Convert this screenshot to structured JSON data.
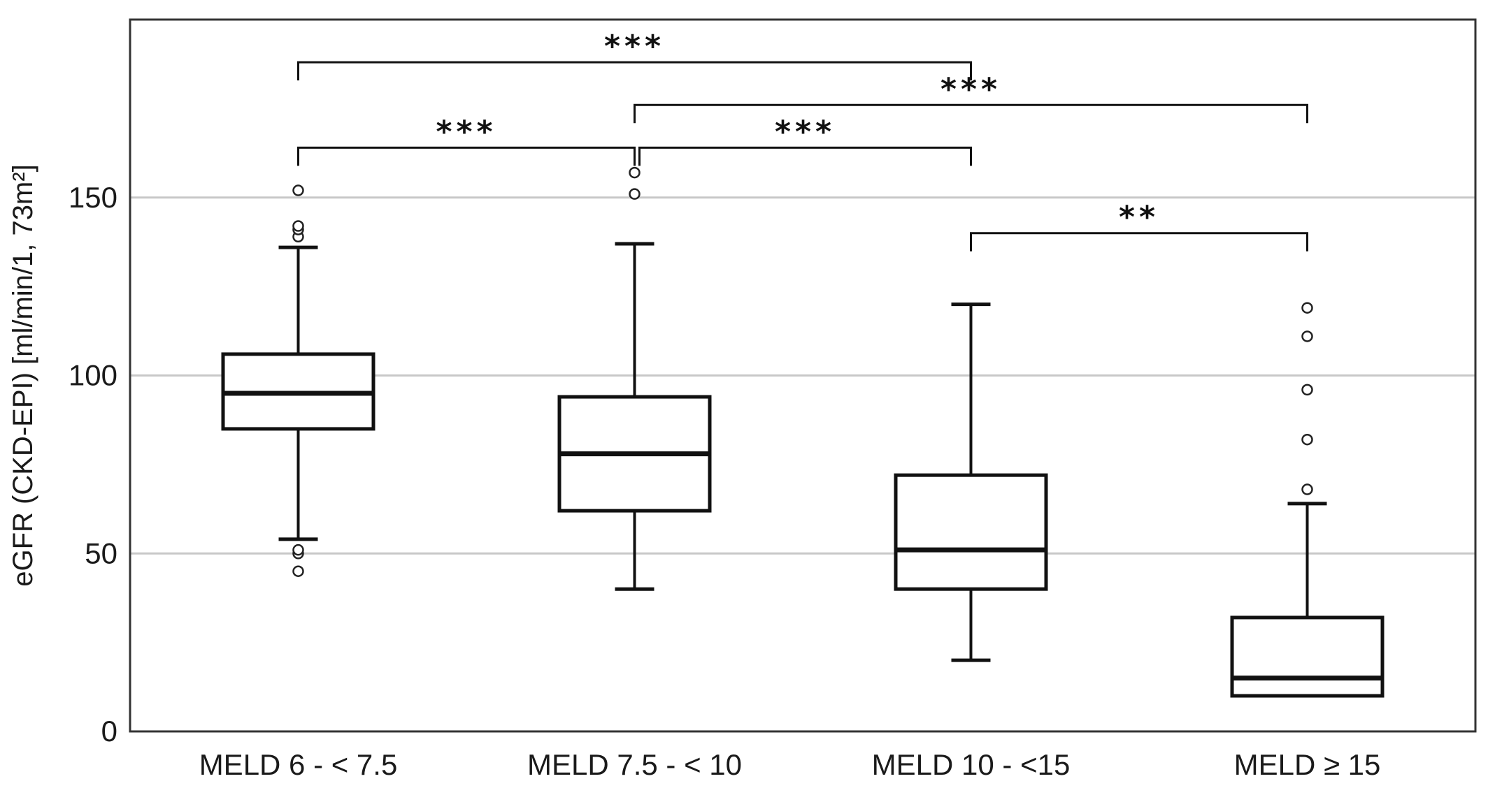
{
  "chart_data": {
    "type": "box",
    "title": "",
    "xlabel": "",
    "ylabel": "eGFR (CKD-EPI) [ml/min/1, 73m²]",
    "ylim": [
      0,
      200
    ],
    "yticks": [
      0,
      50,
      100,
      150
    ],
    "grid": true,
    "categories": [
      "MELD 6 - < 7.5",
      "MELD 7.5 - < 10",
      "MELD 10 - <15",
      "MELD ≥ 15"
    ],
    "boxes": [
      {
        "category": "MELD 6 - < 7.5",
        "whisker_low": 54,
        "q1": 85,
        "median": 95,
        "q3": 106,
        "whisker_high": 136,
        "outliers": [
          45,
          50,
          51,
          139,
          141,
          142,
          152
        ]
      },
      {
        "category": "MELD 7.5 - < 10",
        "whisker_low": 40,
        "q1": 62,
        "median": 78,
        "q3": 94,
        "whisker_high": 137,
        "outliers": [
          151,
          157
        ]
      },
      {
        "category": "MELD 10 - <15",
        "whisker_low": 20,
        "q1": 40,
        "median": 51,
        "q3": 72,
        "whisker_high": 120,
        "outliers": []
      },
      {
        "category": "MELD ≥ 15",
        "whisker_low": 10,
        "q1": 10,
        "median": 15,
        "q3": 32,
        "whisker_high": 64,
        "outliers": [
          68,
          82,
          96,
          111,
          119
        ]
      }
    ],
    "significance": [
      {
        "from": 0,
        "to": 2,
        "label": "***",
        "y": 188
      },
      {
        "from": 1,
        "to": 3,
        "label": "***",
        "y": 176
      },
      {
        "from": 0,
        "to": 1,
        "label": "***",
        "y": 164
      },
      {
        "from": 1,
        "to": 2,
        "label": "***",
        "y": 164
      },
      {
        "from": 2,
        "to": 3,
        "label": "**",
        "y": 140
      }
    ],
    "colors": {
      "box_stroke": "#111111",
      "grid": "#c8c8c8",
      "frame": "#333333",
      "outlier": "#222222"
    }
  }
}
